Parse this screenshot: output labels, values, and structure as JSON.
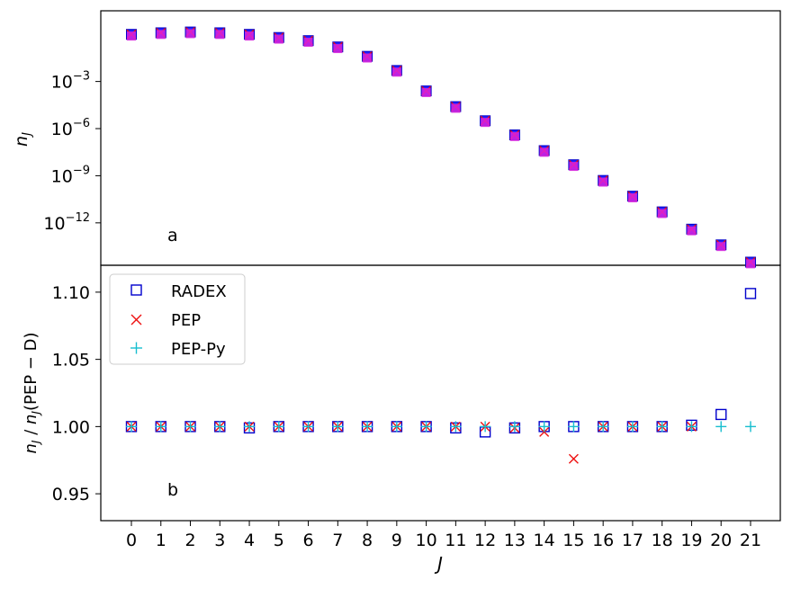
{
  "chart_data": [
    {
      "panel": "a",
      "type": "scatter",
      "yscale": "log",
      "ylabel": "n_J",
      "xlabel": "",
      "ylim_exponent": [
        -14.7,
        1.5
      ],
      "yticks": [
        {
          "exp": "-3"
        },
        {
          "exp": "-6"
        },
        {
          "exp": "-9"
        },
        {
          "exp": "-12"
        }
      ],
      "ytick_base": "10",
      "panel_label": "a",
      "x": [
        0,
        1,
        2,
        3,
        4,
        5,
        6,
        7,
        8,
        9,
        10,
        11,
        12,
        13,
        14,
        15,
        16,
        17,
        18,
        19,
        20,
        21
      ],
      "series": [
        {
          "marker": "filled-square-blue",
          "log10_values": [
            0.0,
            0.1,
            0.15,
            0.1,
            0.0,
            -0.2,
            -0.4,
            -0.8,
            -1.4,
            -2.3,
            -3.6,
            -4.6,
            -5.5,
            -6.4,
            -7.4,
            -8.3,
            -9.3,
            -10.3,
            -11.3,
            -12.4,
            -13.4,
            -14.5
          ]
        },
        {
          "name": "PEP",
          "marker": "x-red",
          "log10_values": [
            0.0,
            0.1,
            0.15,
            0.1,
            0.0,
            -0.2,
            -0.4,
            -0.8,
            -1.4,
            -2.3,
            -3.6,
            -4.6,
            -5.5,
            -6.4,
            -7.4,
            -8.3,
            -9.3,
            -10.3,
            -11.3,
            -12.4,
            -13.4,
            -14.5
          ]
        },
        {
          "marker": "filled-square-magenta",
          "log10_values": [
            -0.05,
            0.05,
            0.1,
            0.05,
            -0.05,
            -0.25,
            -0.45,
            -0.85,
            -1.45,
            -2.35,
            -3.65,
            -4.65,
            -5.55,
            -6.45,
            -7.45,
            -8.35,
            -9.35,
            -10.35,
            -11.35,
            -12.45,
            -13.45,
            -14.55
          ]
        }
      ]
    },
    {
      "panel": "b",
      "type": "scatter",
      "xlabel": "J",
      "ylabel": "n_J / n_J(PEP − D)",
      "ylim": [
        0.93,
        1.12
      ],
      "yticks": [
        "0.95",
        "1.00",
        "1.05",
        "1.10"
      ],
      "panel_label": "b",
      "x": [
        0,
        1,
        2,
        3,
        4,
        5,
        6,
        7,
        8,
        9,
        10,
        11,
        12,
        13,
        14,
        15,
        16,
        17,
        18,
        19,
        20,
        21
      ],
      "xtick_labels": [
        "0",
        "1",
        "2",
        "3",
        "4",
        "5",
        "6",
        "7",
        "8",
        "9",
        "10",
        "11",
        "12",
        "13",
        "14",
        "15",
        "16",
        "17",
        "18",
        "19",
        "20",
        "21"
      ],
      "legend_position": "top-left",
      "series": [
        {
          "name": "RADEX",
          "marker": "open-square",
          "color": "#0000cc",
          "values": [
            1.0,
            1.0,
            1.0,
            1.0,
            0.999,
            1.0,
            1.0,
            1.0,
            1.0,
            1.0,
            1.0,
            0.999,
            0.996,
            0.999,
            1.0,
            1.0,
            1.0,
            1.0,
            1.0,
            1.001,
            1.009,
            1.099
          ]
        },
        {
          "name": "PEP",
          "marker": "x",
          "color": "#ee1111",
          "values": [
            1.0,
            1.0,
            1.0,
            1.0,
            1.0,
            1.0,
            1.0,
            1.0,
            1.0,
            1.0,
            1.0,
            1.0,
            1.0,
            0.999,
            0.996,
            0.976,
            1.0,
            1.0,
            1.0,
            1.0,
            null,
            null
          ]
        },
        {
          "name": "PEP-Py",
          "marker": "plus",
          "color": "#17becf",
          "values": [
            1.0,
            1.0,
            1.0,
            1.0,
            1.0,
            1.0,
            1.0,
            1.0,
            1.0,
            1.0,
            1.0,
            1.0,
            1.0,
            1.0,
            1.0,
            1.0,
            1.0,
            1.0,
            1.0,
            1.0,
            1.0,
            1.0
          ]
        }
      ]
    }
  ]
}
